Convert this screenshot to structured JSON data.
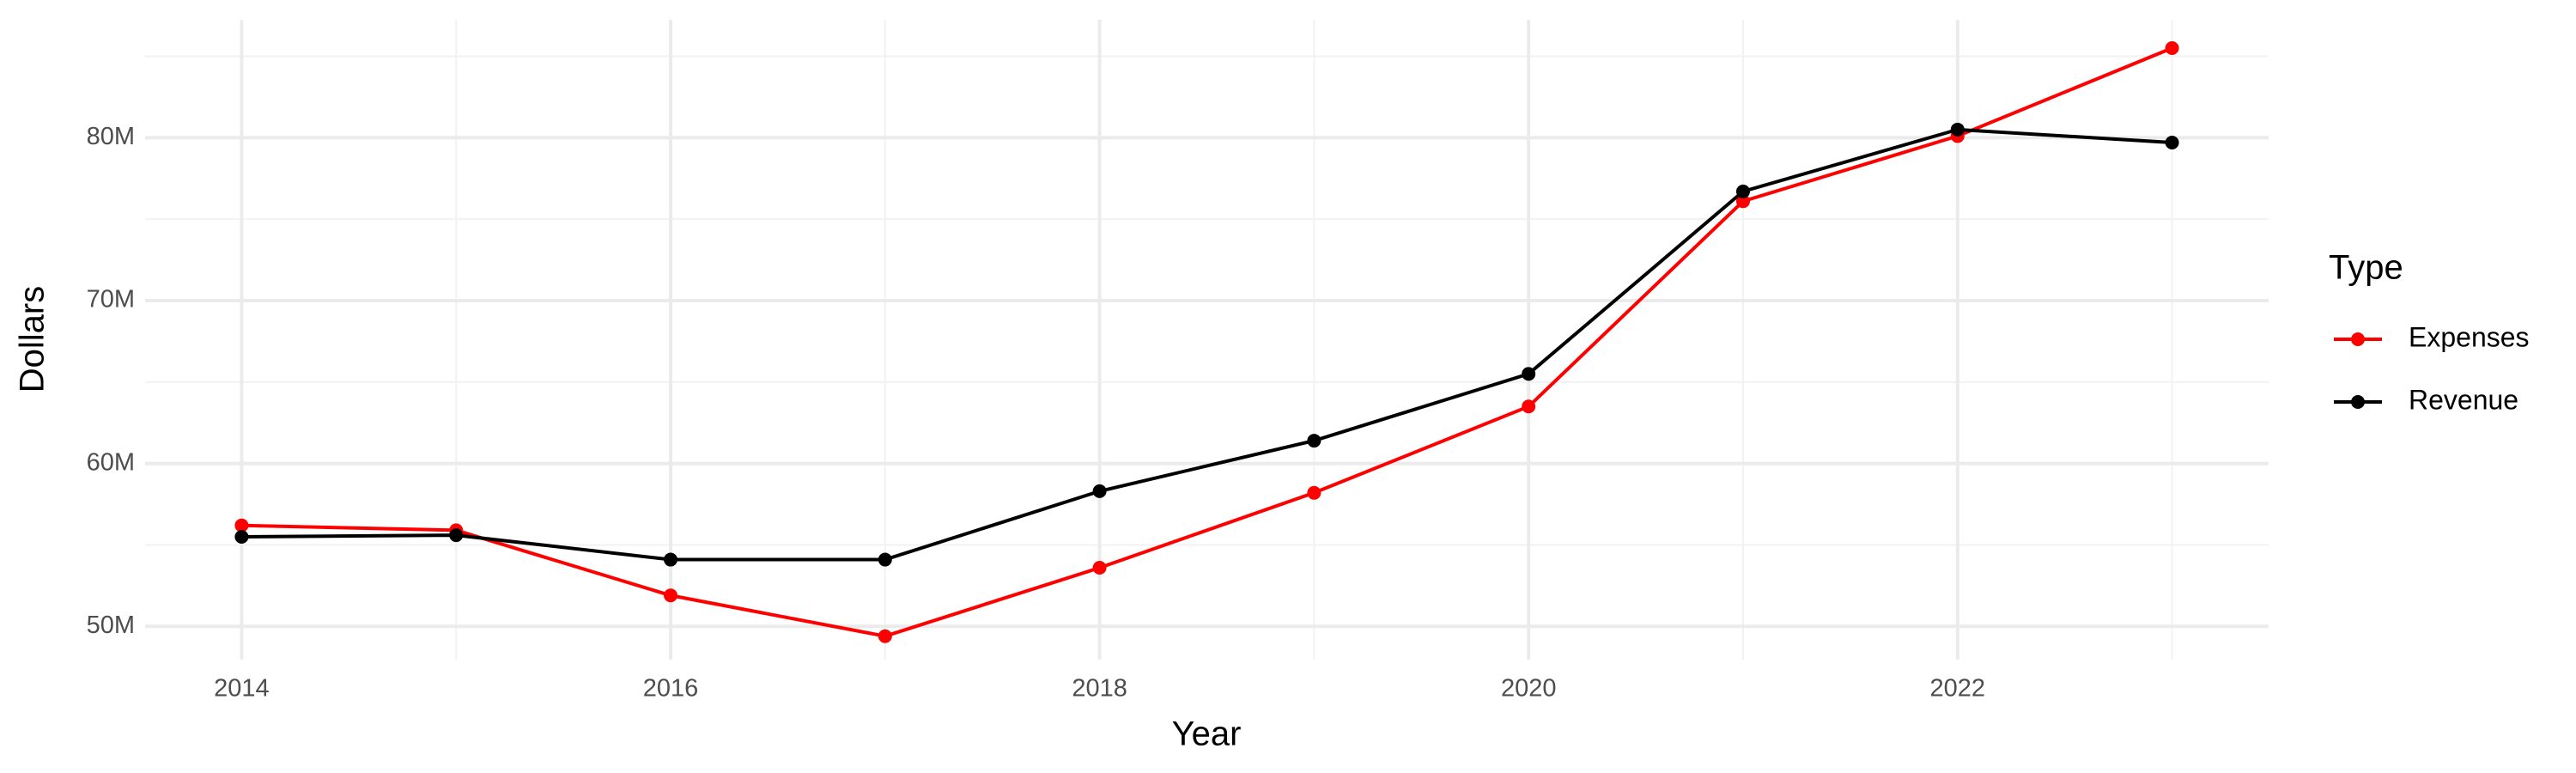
{
  "chart_data": {
    "type": "line",
    "x_label": "Year",
    "y_label": "Dollars",
    "x": [
      2014,
      2015,
      2016,
      2017,
      2018,
      2019,
      2020,
      2021,
      2022,
      2023
    ],
    "series": [
      {
        "name": "Expenses",
        "color": "#ff0000",
        "values": [
          56200000,
          55900000,
          51900000,
          49400000,
          53600000,
          58200000,
          63500000,
          76100000,
          80100000,
          85500000
        ]
      },
      {
        "name": "Revenue",
        "color": "#000000",
        "values": [
          55500000,
          55600000,
          54100000,
          54100000,
          58300000,
          61400000,
          65500000,
          76700000,
          80500000,
          79700000
        ]
      }
    ],
    "xlim": [
      2013.55,
      2023.45
    ],
    "xticks": [
      2014,
      2016,
      2018,
      2020,
      2022
    ],
    "ylim": [
      47960000,
      87240000
    ],
    "yticks": [
      {
        "value": 50000000,
        "label": "50M"
      },
      {
        "value": 60000000,
        "label": "60M"
      },
      {
        "value": 70000000,
        "label": "70M"
      },
      {
        "value": 80000000,
        "label": "80M"
      }
    ],
    "grid": true,
    "minor_grid": true,
    "legend_title": "Type",
    "legend_position": "right"
  }
}
